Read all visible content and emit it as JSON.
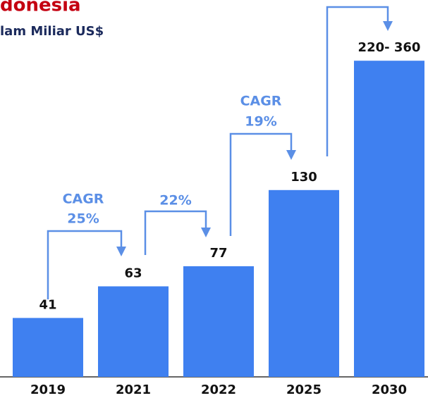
{
  "chart_data": {
    "type": "bar",
    "title": "donesia",
    "subtitle": "lam Miliar US$",
    "categories": [
      "2019",
      "2021",
      "2022",
      "2025",
      "2030"
    ],
    "values": [
      41,
      63,
      77,
      130,
      220
    ],
    "value_labels": [
      null,
      null,
      null,
      null,
      "220- 360"
    ],
    "color": "#3f80f0",
    "annotations": [
      "CAGR",
      "25%",
      "22%",
      "CAGR",
      "19%"
    ]
  }
}
